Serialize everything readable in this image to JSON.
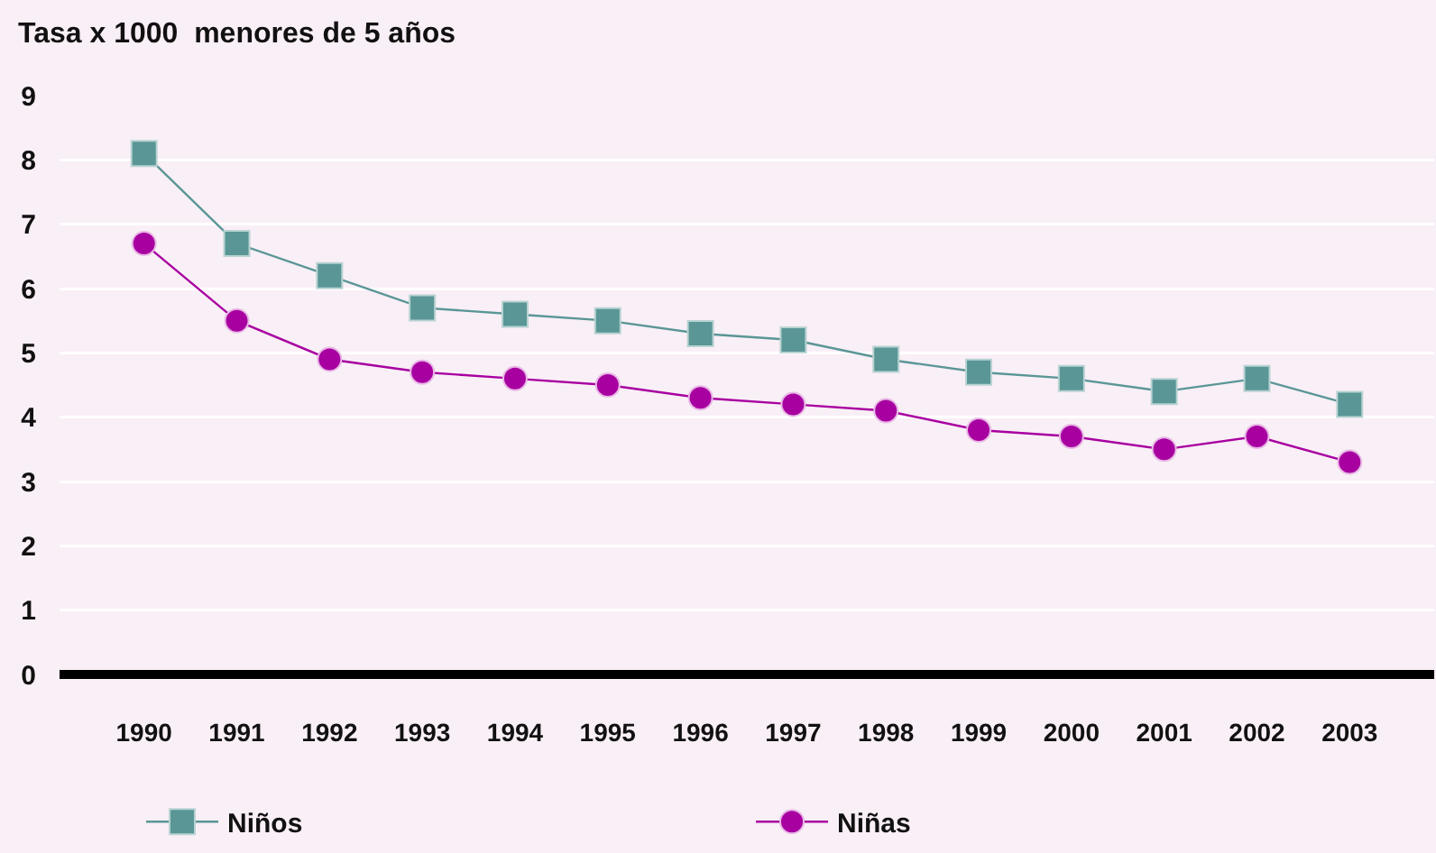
{
  "chart_data": {
    "type": "line",
    "title": "Tasa x 1000  menores de 5 años",
    "categories": [
      "1990",
      "1991",
      "1992",
      "1993",
      "1994",
      "1995",
      "1996",
      "1997",
      "1998",
      "1999",
      "2000",
      "2001",
      "2002",
      "2003"
    ],
    "series": [
      {
        "name": "Niños",
        "color": "#5a9696",
        "marker": "square",
        "values": [
          8.1,
          6.7,
          6.2,
          5.7,
          5.6,
          5.5,
          5.3,
          5.2,
          4.9,
          4.7,
          4.6,
          4.4,
          4.6,
          4.2
        ]
      },
      {
        "name": "Niñas",
        "color": "#a800a0",
        "marker": "circle",
        "values": [
          6.7,
          5.5,
          4.9,
          4.7,
          4.6,
          4.5,
          4.3,
          4.2,
          4.1,
          3.8,
          3.7,
          3.5,
          3.7,
          3.3
        ]
      }
    ],
    "ylim": [
      0,
      9
    ],
    "yticks": [
      0,
      1,
      2,
      3,
      4,
      5,
      6,
      7,
      8,
      9
    ],
    "grid": "y",
    "legend": "bottom",
    "line_style": "solid"
  }
}
